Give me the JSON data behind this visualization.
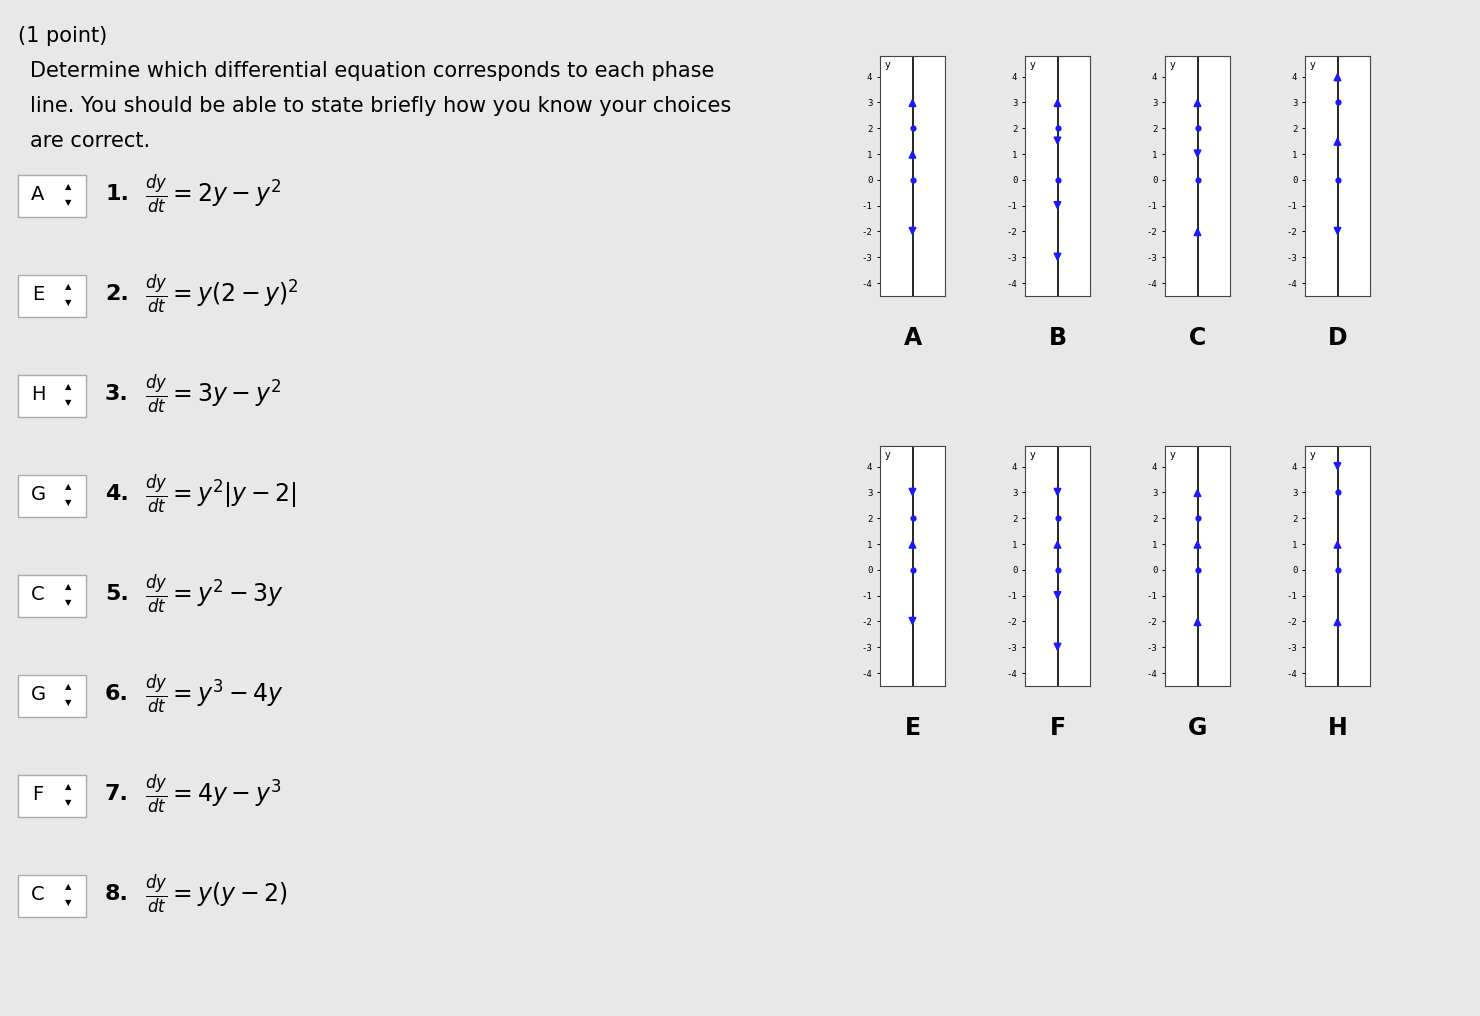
{
  "background_color": "#e8e8e8",
  "title_text": "(1 point)",
  "description_lines": [
    "Determine which differential equation corresponds to each phase",
    "line. You should be able to state briefly how you know your choices",
    "are correct."
  ],
  "equations": [
    {
      "label": "A",
      "number": "1.",
      "eq": "$\\frac{dy}{dt} = 2y - y^2$"
    },
    {
      "label": "E",
      "number": "2.",
      "eq": "$\\frac{dy}{dt} = y(2 - y)^2$"
    },
    {
      "label": "H",
      "number": "3.",
      "eq": "$\\frac{dy}{dt} = 3y - y^2$"
    },
    {
      "label": "G",
      "number": "4.",
      "eq": "$\\frac{dy}{dt} = y^2|y - 2|$"
    },
    {
      "label": "C",
      "number": "5.",
      "eq": "$\\frac{dy}{dt} = y^2 - 3y$"
    },
    {
      "label": "G",
      "number": "6.",
      "eq": "$\\frac{dy}{dt} = y^3 - 4y$"
    },
    {
      "label": "F",
      "number": "7.",
      "eq": "$\\frac{dy}{dt} = 4y - y^3$"
    },
    {
      "label": "C",
      "number": "8.",
      "eq": "$\\frac{dy}{dt} = y(y - 2)$"
    }
  ],
  "phase_diagrams": {
    "A": {
      "equilibria": [
        0,
        2
      ],
      "arrows": [
        {
          "y": 3.0,
          "up": true
        },
        {
          "y": 1.0,
          "up": true
        },
        {
          "y": -2.0,
          "up": false
        }
      ]
    },
    "B": {
      "equilibria": [
        0,
        2
      ],
      "arrows": [
        {
          "y": 3.0,
          "up": true
        },
        {
          "y": 1.5,
          "up": false
        },
        {
          "y": -1.0,
          "up": false
        },
        {
          "y": -3.0,
          "up": false
        }
      ]
    },
    "C": {
      "equilibria": [
        0,
        2
      ],
      "arrows": [
        {
          "y": 3.0,
          "up": true
        },
        {
          "y": 1.0,
          "up": false
        },
        {
          "y": -2.0,
          "up": true
        }
      ]
    },
    "D": {
      "equilibria": [
        0,
        3
      ],
      "arrows": [
        {
          "y": 4.0,
          "up": true
        },
        {
          "y": 1.5,
          "up": true
        },
        {
          "y": -2.0,
          "up": false
        }
      ]
    },
    "E": {
      "equilibria": [
        0,
        2
      ],
      "arrows": [
        {
          "y": 3.0,
          "up": false
        },
        {
          "y": 1.0,
          "up": true
        },
        {
          "y": -2.0,
          "up": false
        }
      ]
    },
    "F": {
      "equilibria": [
        0,
        2
      ],
      "arrows": [
        {
          "y": 3.0,
          "up": false
        },
        {
          "y": 1.0,
          "up": true
        },
        {
          "y": -1.0,
          "up": false
        },
        {
          "y": -3.0,
          "up": false
        }
      ]
    },
    "G": {
      "equilibria": [
        0,
        2
      ],
      "arrows": [
        {
          "y": 3.0,
          "up": true
        },
        {
          "y": 1.0,
          "up": true
        },
        {
          "y": -2.0,
          "up": true
        }
      ]
    },
    "H": {
      "equilibria": [
        0,
        3
      ],
      "arrows": [
        {
          "y": 4.0,
          "up": false
        },
        {
          "y": 1.0,
          "up": true
        },
        {
          "y": -2.0,
          "up": true
        }
      ]
    }
  },
  "arrow_color": "#1a1aff",
  "dot_color": "#1a1aff",
  "line_color": "#000000",
  "phase_ylim": [
    -4.5,
    4.8
  ],
  "phase_yticks": [
    -4,
    -3,
    -2,
    -1,
    0,
    1,
    2,
    3,
    4
  ],
  "top_row_labels": [
    "A",
    "B",
    "C",
    "D"
  ],
  "bottom_row_labels": [
    "E",
    "F",
    "G",
    "H"
  ]
}
